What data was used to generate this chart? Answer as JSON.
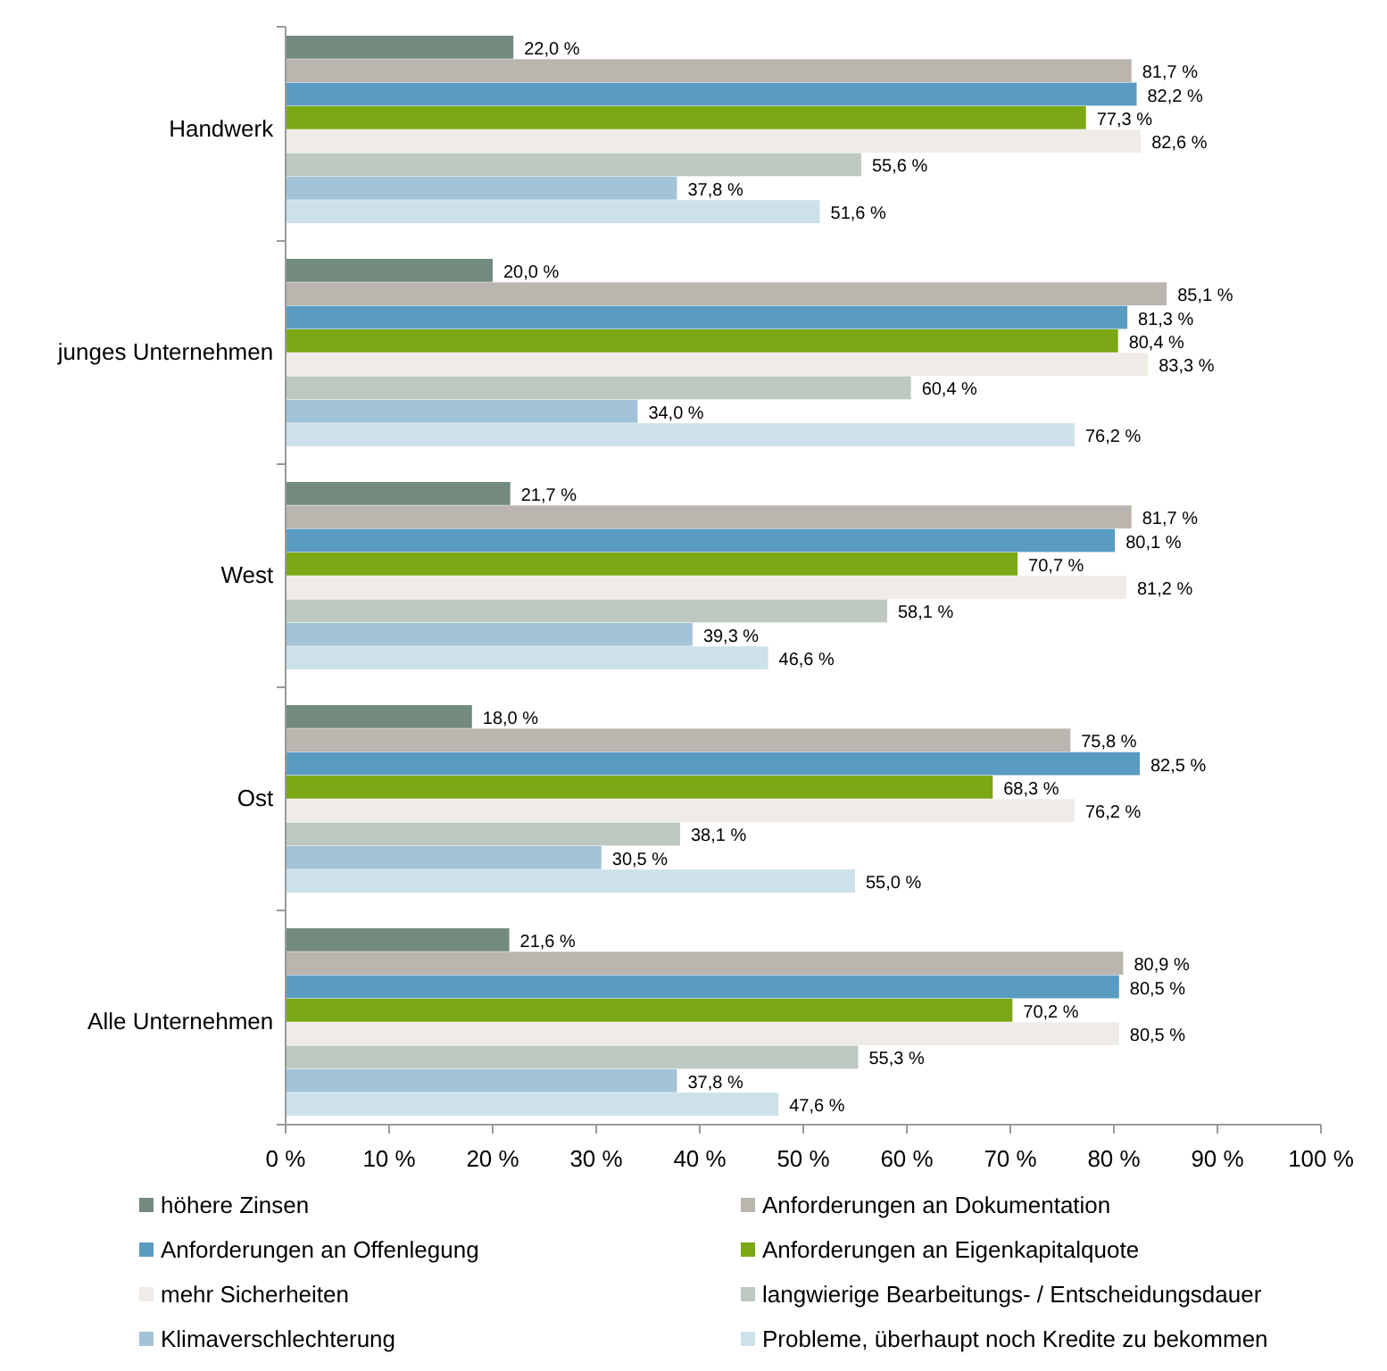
{
  "chart_data": {
    "type": "bar",
    "orientation": "horizontal",
    "categories": [
      "Handwerk",
      "junges Unternehmen",
      "West",
      "Ost",
      "Alle Unternehmen"
    ],
    "xlim": [
      0,
      100
    ],
    "xticks": [
      {
        "value": 0,
        "label": "0 %"
      },
      {
        "value": 10,
        "label": "10 %"
      },
      {
        "value": 20,
        "label": "20 %"
      },
      {
        "value": 30,
        "label": "30 %"
      },
      {
        "value": 40,
        "label": "40 %"
      },
      {
        "value": 50,
        "label": "50 %"
      },
      {
        "value": 60,
        "label": "60 %"
      },
      {
        "value": 70,
        "label": "70 %"
      },
      {
        "value": 80,
        "label": "80 %"
      },
      {
        "value": 90,
        "label": "90 %"
      },
      {
        "value": 100,
        "label": "100 %"
      }
    ],
    "legend": "bottom",
    "grid": false,
    "series": [
      {
        "name": "höhere Zinsen",
        "color": "#738a7e",
        "values": [
          22.0,
          20.0,
          21.7,
          18.0,
          21.6
        ],
        "value_labels": [
          "22,0 %",
          "20,0 %",
          "21,7 %",
          "18,0 %",
          "21,6 %"
        ]
      },
      {
        "name": "Anforderungen an Dokumentation",
        "color": "#bab5ae",
        "values": [
          81.7,
          85.1,
          81.7,
          75.8,
          80.9
        ],
        "value_labels": [
          "81,7 %",
          "85,1 %",
          "81,7 %",
          "75,8 %",
          "80,9 %"
        ]
      },
      {
        "name": "Anforderungen an Offenlegung",
        "color": "#5a9bc1",
        "values": [
          82.2,
          81.3,
          80.1,
          82.5,
          80.5
        ],
        "value_labels": [
          "82,2 %",
          "81,3 %",
          "80,1 %",
          "82,5 %",
          "80,5 %"
        ]
      },
      {
        "name": "Anforderungen an Eigenkapitalquote",
        "color": "#7ba814",
        "values": [
          77.3,
          80.4,
          70.7,
          68.3,
          70.2
        ],
        "value_labels": [
          "77,3 %",
          "80,4 %",
          "70,7 %",
          "68,3 %",
          "70,2 %"
        ]
      },
      {
        "name": "mehr Sicherheiten",
        "color": "#efebe6",
        "values": [
          82.6,
          83.3,
          81.2,
          76.2,
          80.5
        ],
        "value_labels": [
          "82,6 %",
          "83,3 %",
          "81,2 %",
          "76,2 %",
          "80,5 %"
        ]
      },
      {
        "name": "langwierige Bearbeitungs- / Entscheidungsdauer",
        "color": "#bcc8c0",
        "values": [
          55.6,
          60.4,
          58.1,
          38.1,
          55.3
        ],
        "value_labels": [
          "55,6 %",
          "60,4 %",
          "58,1 %",
          "38,1 %",
          "55,3 %"
        ]
      },
      {
        "name": "Klimaverschlechterung",
        "color": "#a3c3d8",
        "values": [
          37.8,
          34.0,
          39.3,
          30.5,
          37.8
        ],
        "value_labels": [
          "37,8 %",
          "34,0 %",
          "39,3 %",
          "30,5 %",
          "37,8 %"
        ]
      },
      {
        "name": "Probleme, überhaupt noch Kredite zu bekommen",
        "color": "#cde1ea",
        "values": [
          51.6,
          76.2,
          46.6,
          55.0,
          47.6
        ],
        "value_labels": [
          "51,6 %",
          "76,2 %",
          "46,6 %",
          "55,0 %",
          "47,6 %"
        ]
      }
    ]
  }
}
